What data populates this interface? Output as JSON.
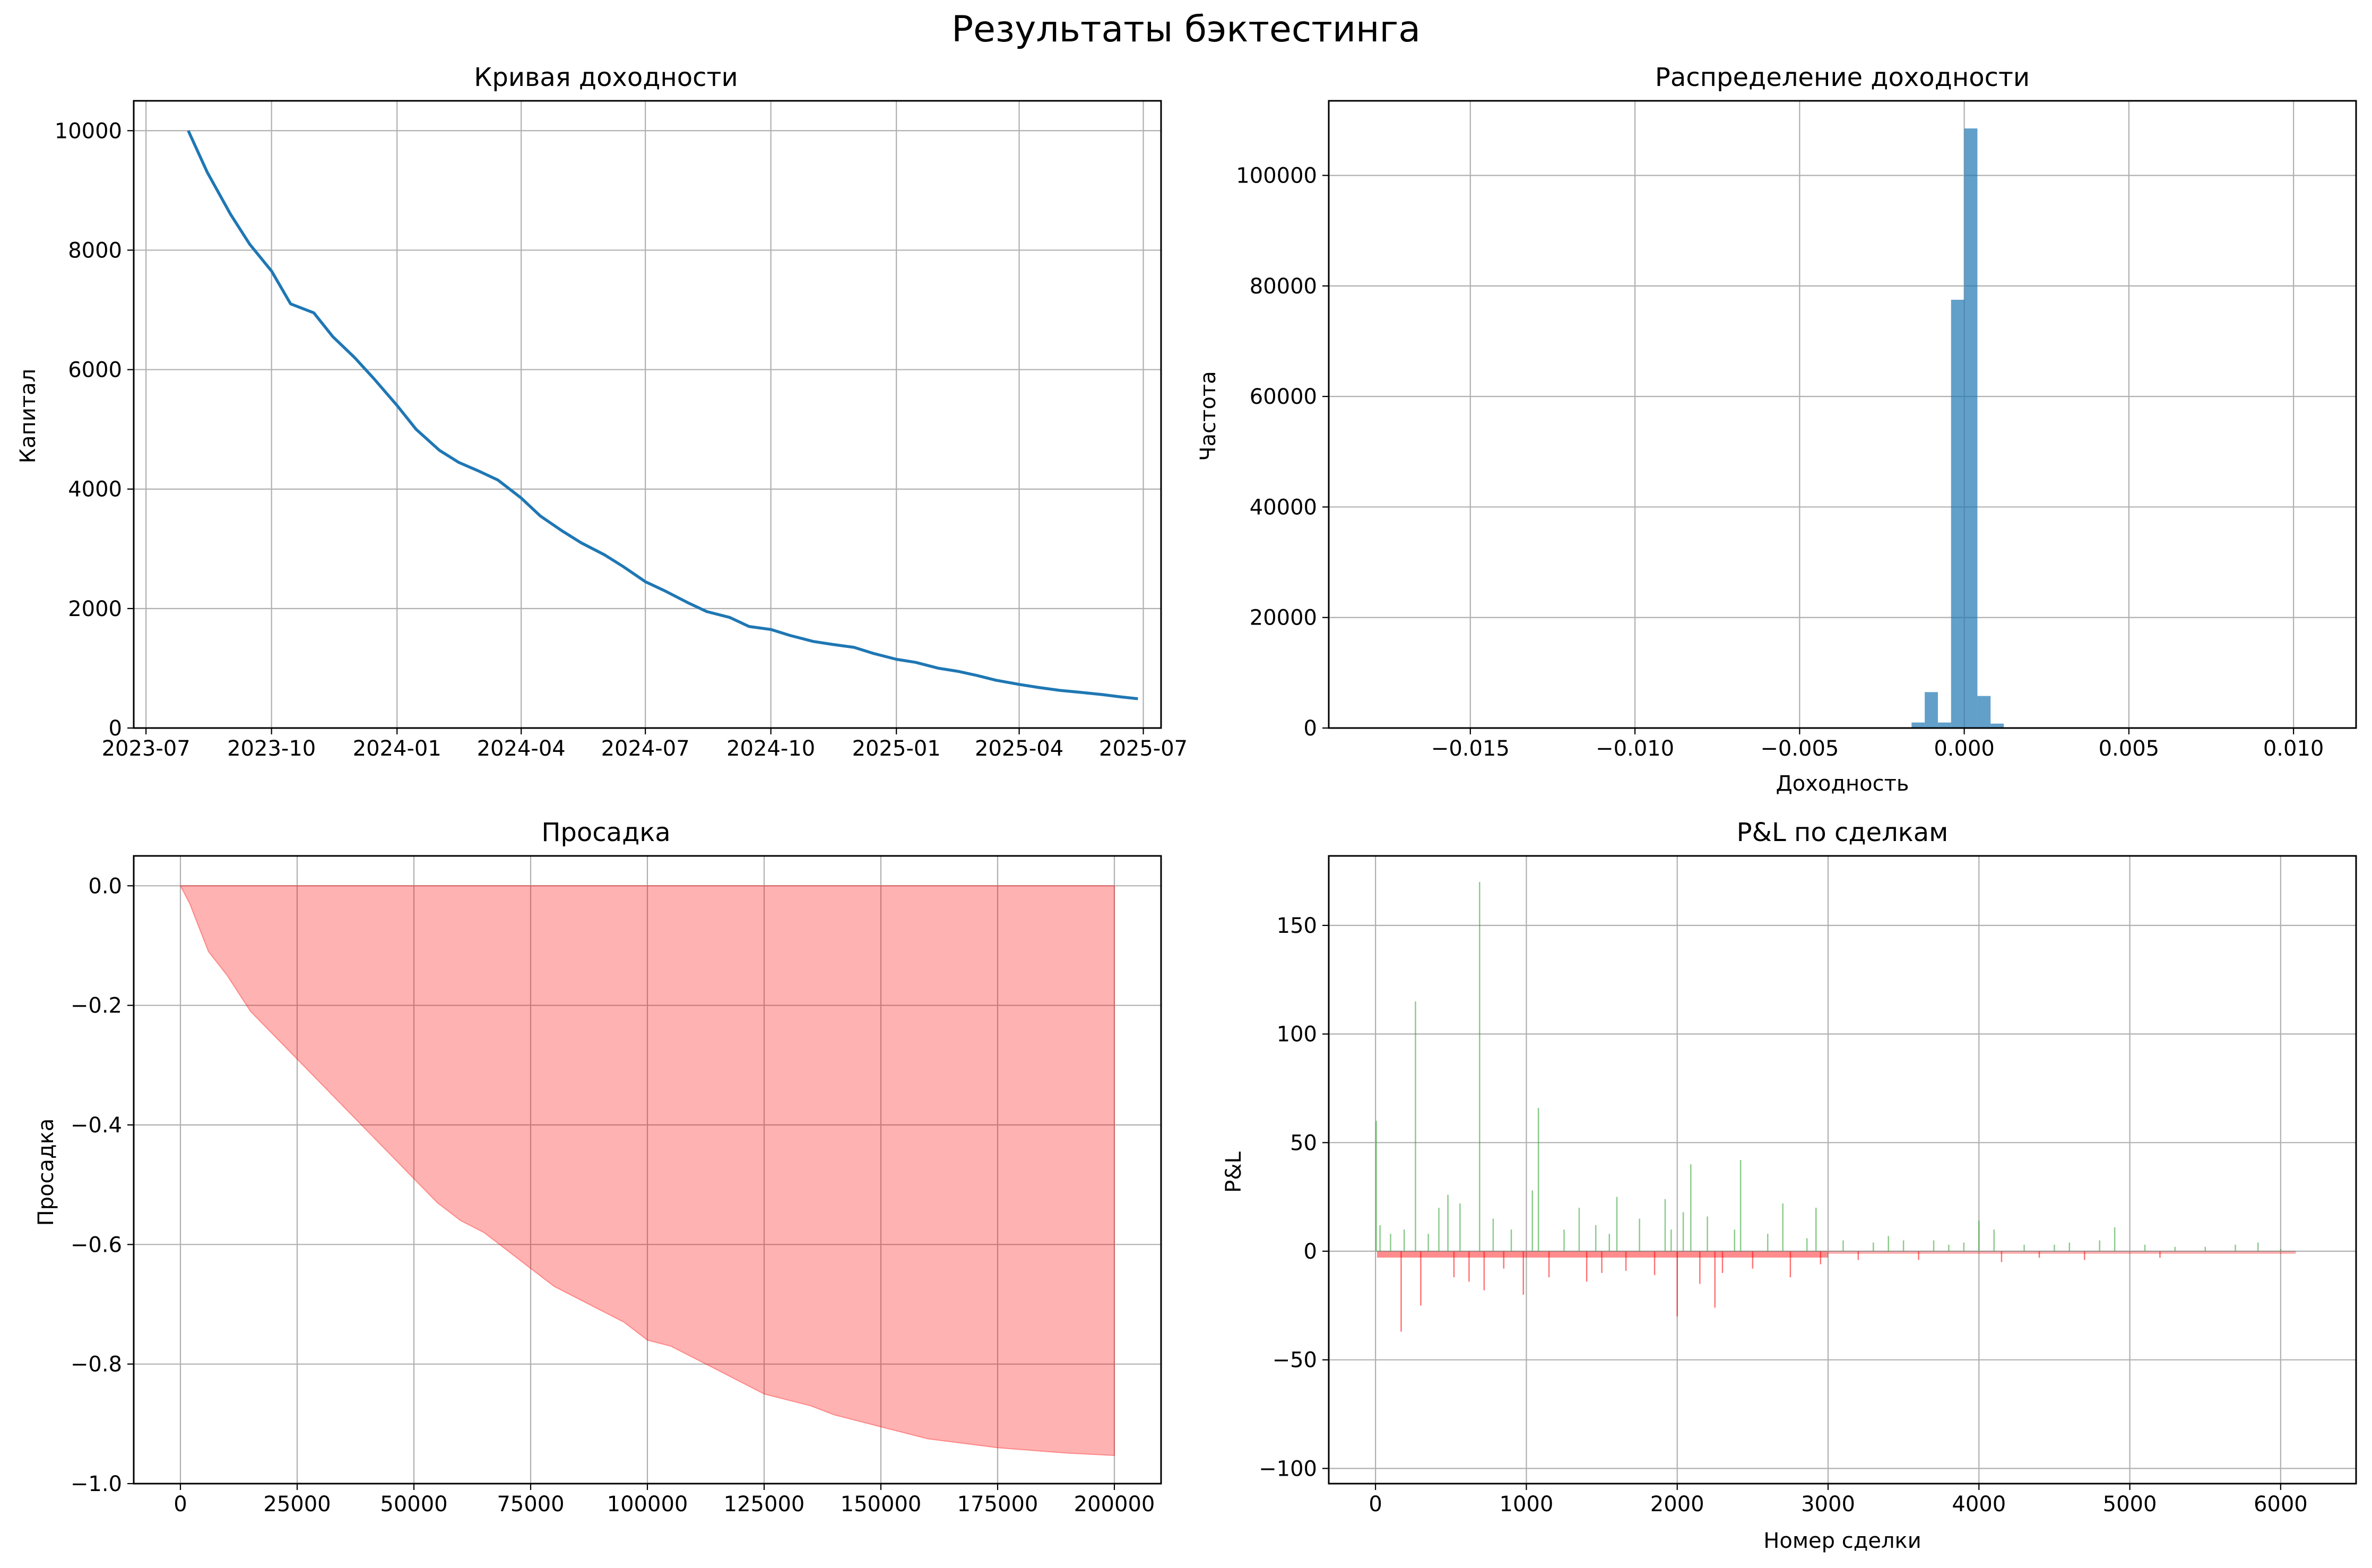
{
  "figure": {
    "title": "Результаты бэктестинга"
  },
  "chart_data": [
    {
      "id": "equity",
      "type": "line",
      "title": "Кривая доходности",
      "xlabel": "",
      "ylabel": "Капитал",
      "grid": true,
      "color": "#1f77b4",
      "xlim": [
        "2023-06-22",
        "2025-07-14"
      ],
      "ylim": [
        0,
        10500
      ],
      "xticks": [
        "2023-07",
        "2023-10",
        "2024-01",
        "2024-04",
        "2024-07",
        "2024-10",
        "2025-01",
        "2025-04",
        "2025-07"
      ],
      "yticks": [
        0,
        2000,
        4000,
        6000,
        8000,
        10000
      ],
      "series": [
        {
          "x": [
            "2023-08-01",
            "2023-08-15",
            "2023-09-01",
            "2023-09-15",
            "2023-10-01",
            "2023-10-15",
            "2023-11-01",
            "2023-11-15",
            "2023-12-01",
            "2023-12-15",
            "2024-01-01",
            "2024-01-15",
            "2024-02-01",
            "2024-02-15",
            "2024-03-01",
            "2024-03-15",
            "2024-04-01",
            "2024-04-15",
            "2024-05-01",
            "2024-05-15",
            "2024-06-01",
            "2024-06-15",
            "2024-07-01",
            "2024-07-15",
            "2024-08-01",
            "2024-08-15",
            "2024-09-01",
            "2024-09-15",
            "2024-10-01",
            "2024-10-15",
            "2024-11-01",
            "2024-11-15",
            "2024-12-01",
            "2024-12-15",
            "2025-01-01",
            "2025-01-15",
            "2025-02-01",
            "2025-02-15",
            "2025-03-01",
            "2025-03-15",
            "2025-04-01",
            "2025-04-15",
            "2025-05-01",
            "2025-05-15",
            "2025-06-01",
            "2025-06-15",
            "2025-06-27"
          ],
          "y": [
            10000,
            9300,
            8600,
            8100,
            7650,
            7100,
            6950,
            6550,
            6200,
            5850,
            5400,
            5000,
            4650,
            4450,
            4300,
            4150,
            3850,
            3550,
            3300,
            3100,
            2900,
            2700,
            2450,
            2300,
            2100,
            1950,
            1850,
            1700,
            1650,
            1550,
            1450,
            1400,
            1350,
            1250,
            1150,
            1100,
            1000,
            950,
            880,
            800,
            730,
            680,
            630,
            600,
            560,
            520,
            490
          ]
        }
      ]
    },
    {
      "id": "histogram",
      "type": "bar",
      "title": "Распределение доходности",
      "xlabel": "Доходность",
      "ylabel": "Частота",
      "grid": true,
      "color": "#1f77b4",
      "xlim": [
        -0.0193,
        0.0119
      ],
      "ylim": [
        0,
        113500
      ],
      "xticks": [
        -0.015,
        -0.01,
        -0.005,
        0.0,
        0.005,
        0.01
      ],
      "xtick_labels": [
        "−0.015",
        "−0.010",
        "−0.005",
        "0.000",
        "0.005",
        "0.010"
      ],
      "yticks": [
        0,
        20000,
        40000,
        60000,
        80000,
        100000
      ],
      "bin_width": 0.0004,
      "bins": [
        {
          "x0": -0.0016,
          "count": 1000
        },
        {
          "x0": -0.0012,
          "count": 6500
        },
        {
          "x0": -0.0008,
          "count": 1000
        },
        {
          "x0": -0.0004,
          "count": 77500
        },
        {
          "x0": 0.0,
          "count": 108500
        },
        {
          "x0": 0.0004,
          "count": 5800
        },
        {
          "x0": 0.0008,
          "count": 800
        }
      ]
    },
    {
      "id": "drawdown",
      "type": "area",
      "title": "Просадка",
      "xlabel": "",
      "ylabel": "Просадка",
      "grid": true,
      "color": "#ff0000",
      "xlim": [
        -10000,
        210000
      ],
      "ylim": [
        -1.0,
        0.05
      ],
      "xticks": [
        0,
        25000,
        50000,
        75000,
        100000,
        125000,
        150000,
        175000,
        200000
      ],
      "yticks": [
        -1.0,
        -0.8,
        -0.6,
        -0.4,
        -0.2,
        0.0
      ],
      "ytick_labels": [
        "−1.0",
        "−0.8",
        "−0.6",
        "−0.4",
        "−0.2",
        "0.0"
      ],
      "series": [
        {
          "x": [
            0,
            2000,
            4000,
            6000,
            8000,
            10000,
            12500,
            15000,
            17500,
            20000,
            22500,
            25000,
            27500,
            30000,
            35000,
            40000,
            45000,
            50000,
            55000,
            60000,
            65000,
            70000,
            75000,
            80000,
            85000,
            90000,
            95000,
            100000,
            105000,
            110000,
            115000,
            120000,
            125000,
            130000,
            135000,
            140000,
            145000,
            150000,
            155000,
            160000,
            165000,
            170000,
            175000,
            180000,
            185000,
            190000,
            195000,
            200000
          ],
          "y": [
            0,
            -0.03,
            -0.07,
            -0.11,
            -0.13,
            -0.15,
            -0.18,
            -0.21,
            -0.23,
            -0.25,
            -0.27,
            -0.29,
            -0.31,
            -0.33,
            -0.37,
            -0.41,
            -0.45,
            -0.49,
            -0.53,
            -0.56,
            -0.58,
            -0.61,
            -0.64,
            -0.67,
            -0.69,
            -0.71,
            -0.73,
            -0.76,
            -0.77,
            -0.79,
            -0.81,
            -0.83,
            -0.85,
            -0.86,
            -0.87,
            -0.885,
            -0.895,
            -0.905,
            -0.915,
            -0.925,
            -0.93,
            -0.935,
            -0.94,
            -0.943,
            -0.946,
            -0.949,
            -0.951,
            -0.953
          ]
        }
      ]
    },
    {
      "id": "pnl",
      "type": "bar",
      "title": "P&L по сделкам",
      "xlabel": "Номер сделки",
      "ylabel": "P&L",
      "grid": true,
      "positive_color": "#2ca02c",
      "negative_color": "#ff0000",
      "xlim": [
        -310,
        6500
      ],
      "ylim": [
        -107,
        182
      ],
      "xticks": [
        0,
        1000,
        2000,
        3000,
        4000,
        5000,
        6000
      ],
      "yticks": [
        -100,
        -50,
        0,
        50,
        100,
        150
      ],
      "ytick_labels": [
        "−100",
        "−50",
        "0",
        "50",
        "100",
        "150"
      ],
      "trades": [
        {
          "x": 5,
          "v": 60
        },
        {
          "x": 30,
          "v": 12
        },
        {
          "x": 100,
          "v": 8
        },
        {
          "x": 170,
          "v": -37
        },
        {
          "x": 190,
          "v": 10
        },
        {
          "x": 265,
          "v": 115
        },
        {
          "x": 300,
          "v": -25
        },
        {
          "x": 350,
          "v": 8
        },
        {
          "x": 420,
          "v": 20
        },
        {
          "x": 480,
          "v": 26
        },
        {
          "x": 520,
          "v": -12
        },
        {
          "x": 560,
          "v": 22
        },
        {
          "x": 620,
          "v": -14
        },
        {
          "x": 690,
          "v": 170
        },
        {
          "x": 720,
          "v": -18
        },
        {
          "x": 780,
          "v": 15
        },
        {
          "x": 850,
          "v": -8
        },
        {
          "x": 900,
          "v": 10
        },
        {
          "x": 980,
          "v": -20
        },
        {
          "x": 1040,
          "v": 28
        },
        {
          "x": 1080,
          "v": 66
        },
        {
          "x": 1150,
          "v": -12
        },
        {
          "x": 1250,
          "v": 10
        },
        {
          "x": 1350,
          "v": 20
        },
        {
          "x": 1400,
          "v": -14
        },
        {
          "x": 1460,
          "v": 12
        },
        {
          "x": 1500,
          "v": -10
        },
        {
          "x": 1550,
          "v": 8
        },
        {
          "x": 1600,
          "v": 25
        },
        {
          "x": 1660,
          "v": -9
        },
        {
          "x": 1750,
          "v": 15
        },
        {
          "x": 1850,
          "v": -11
        },
        {
          "x": 1920,
          "v": 24
        },
        {
          "x": 1960,
          "v": 10
        },
        {
          "x": 2000,
          "v": -30
        },
        {
          "x": 2040,
          "v": 18
        },
        {
          "x": 2090,
          "v": 40
        },
        {
          "x": 2150,
          "v": -15
        },
        {
          "x": 2200,
          "v": 16
        },
        {
          "x": 2250,
          "v": -26
        },
        {
          "x": 2300,
          "v": -10
        },
        {
          "x": 2380,
          "v": 10
        },
        {
          "x": 2420,
          "v": 42
        },
        {
          "x": 2500,
          "v": -8
        },
        {
          "x": 2600,
          "v": 8
        },
        {
          "x": 2700,
          "v": 22
        },
        {
          "x": 2750,
          "v": -12
        },
        {
          "x": 2860,
          "v": 6
        },
        {
          "x": 2920,
          "v": 20
        },
        {
          "x": 2950,
          "v": -6
        },
        {
          "x": 3100,
          "v": 5
        },
        {
          "x": 3200,
          "v": -4
        },
        {
          "x": 3300,
          "v": 4
        },
        {
          "x": 3400,
          "v": 7
        },
        {
          "x": 3500,
          "v": 5
        },
        {
          "x": 3600,
          "v": -4
        },
        {
          "x": 3700,
          "v": 5
        },
        {
          "x": 3800,
          "v": 3
        },
        {
          "x": 3900,
          "v": 4
        },
        {
          "x": 4000,
          "v": 14
        },
        {
          "x": 4100,
          "v": 10
        },
        {
          "x": 4150,
          "v": -5
        },
        {
          "x": 4300,
          "v": 3
        },
        {
          "x": 4400,
          "v": -3
        },
        {
          "x": 4500,
          "v": 3
        },
        {
          "x": 4600,
          "v": 4
        },
        {
          "x": 4700,
          "v": -4
        },
        {
          "x": 4800,
          "v": 5
        },
        {
          "x": 4900,
          "v": 11
        },
        {
          "x": 5100,
          "v": 3
        },
        {
          "x": 5200,
          "v": -3
        },
        {
          "x": 5300,
          "v": 2
        },
        {
          "x": 5500,
          "v": 2
        },
        {
          "x": 5700,
          "v": 3
        },
        {
          "x": 5850,
          "v": 4
        },
        {
          "x": 6000,
          "v": 1
        }
      ]
    }
  ]
}
